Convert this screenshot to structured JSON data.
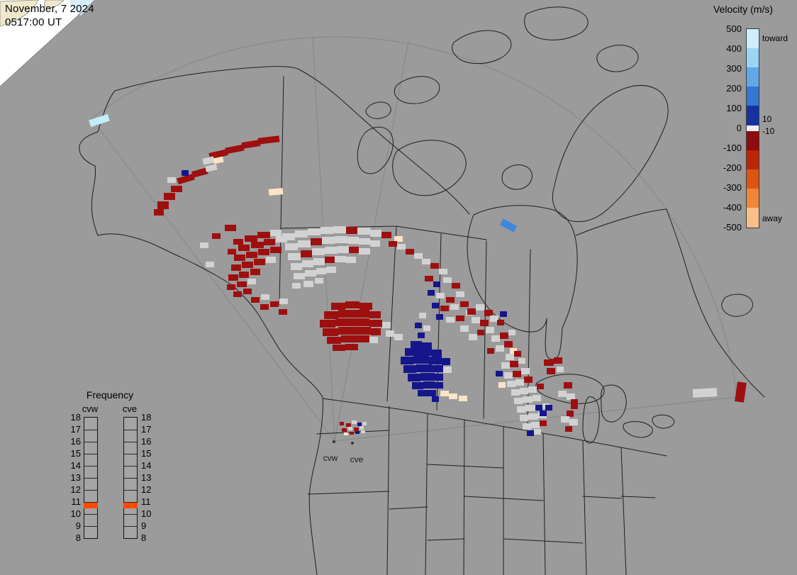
{
  "timestamp": {
    "date": "November, 7 2024",
    "time": "0517:00 UT"
  },
  "velocity_legend": {
    "title": "Velocity (m/s)",
    "toward_label": "toward",
    "away_label": "away",
    "inner_ticks": [
      "10",
      "-10"
    ],
    "ticks": [
      "500",
      "400",
      "300",
      "200",
      "100",
      "0",
      "-100",
      "-200",
      "-300",
      "-400",
      "-500"
    ],
    "segments": [
      {
        "color": "#cdeffc",
        "h": 27
      },
      {
        "color": "#9cd4f3",
        "h": 27
      },
      {
        "color": "#62a8e6",
        "h": 27
      },
      {
        "color": "#3377d2",
        "h": 27
      },
      {
        "color": "#16329f",
        "h": 28
      },
      {
        "color": "#efefef",
        "h": 8
      },
      {
        "color": "#8e0c0c",
        "h": 27
      },
      {
        "color": "#bb2606",
        "h": 27
      },
      {
        "color": "#dd5513",
        "h": 27
      },
      {
        "color": "#ef8638",
        "h": 27
      },
      {
        "color": "#f8bf8a",
        "h": 28
      }
    ]
  },
  "frequency_legend": {
    "title": "Frequency",
    "columns": [
      "cvw",
      "cve"
    ],
    "ticks": [
      "18",
      "17",
      "16",
      "15",
      "14",
      "13",
      "12",
      "11",
      "10",
      "9",
      "8"
    ],
    "highlight": {
      "at_tick": "11",
      "color": "#ff4a00"
    }
  },
  "map": {
    "background_color": "#9b9b9b",
    "radar_sites": [
      {
        "label": "cvw"
      },
      {
        "label": "cve"
      }
    ]
  },
  "palette": {
    "R": "#9e0f0f",
    "G": "#d2d2d2",
    "B": "#15158c",
    "P": "#fbe3c4",
    "C": "#c3ecfb",
    "L": "#3f86dd"
  },
  "cells": [
    [
      126,
      165,
      28,
      10,
      "C",
      -18
    ],
    [
      295,
      213,
      26,
      9,
      "R",
      -13
    ],
    [
      318,
      206,
      26,
      9,
      "R",
      -11
    ],
    [
      341,
      199,
      26,
      9,
      "R",
      -9
    ],
    [
      364,
      193,
      30,
      9,
      "R",
      -7
    ],
    [
      250,
      248,
      24,
      9,
      "R",
      -17
    ],
    [
      271,
      239,
      22,
      9,
      "R",
      -15
    ],
    [
      286,
      222,
      16,
      9,
      "G",
      -13
    ],
    [
      301,
      222,
      14,
      8,
      "P",
      -12
    ],
    [
      290,
      233,
      16,
      8,
      "G",
      -12
    ],
    [
      256,
      240,
      10,
      8,
      "B",
      0
    ],
    [
      222,
      284,
      16,
      11,
      "R",
      0
    ],
    [
      231,
      272,
      16,
      10,
      "R",
      0
    ],
    [
      241,
      262,
      16,
      9,
      "R",
      0
    ],
    [
      217,
      295,
      14,
      9,
      "R",
      0
    ],
    [
      236,
      250,
      12,
      8,
      "G",
      0
    ],
    [
      379,
      266,
      20,
      9,
      "P",
      -5
    ],
    [
      317,
      317,
      16,
      9,
      "R",
      0
    ],
    [
      299,
      329,
      12,
      8,
      "R",
      0
    ],
    [
      282,
      342,
      12,
      8,
      "G",
      0
    ],
    [
      329,
      337,
      14,
      8,
      "R",
      0
    ],
    [
      290,
      369,
      12,
      8,
      "G",
      0
    ],
    [
      321,
      351,
      12,
      8,
      "R",
      0
    ],
    [
      345,
      332,
      18,
      9,
      "R",
      0
    ],
    [
      363,
      327,
      18,
      9,
      "R",
      0
    ],
    [
      381,
      324,
      16,
      9,
      "G",
      0
    ],
    [
      336,
      345,
      16,
      9,
      "R",
      0
    ],
    [
      354,
      341,
      18,
      9,
      "R",
      0
    ],
    [
      372,
      337,
      16,
      9,
      "R",
      0
    ],
    [
      389,
      333,
      16,
      9,
      "G",
      0
    ],
    [
      330,
      359,
      16,
      9,
      "R",
      0
    ],
    [
      347,
      355,
      16,
      9,
      "R",
      0
    ],
    [
      364,
      351,
      16,
      9,
      "R",
      0
    ],
    [
      381,
      348,
      16,
      9,
      "R",
      0
    ],
    [
      326,
      373,
      14,
      9,
      "R",
      0
    ],
    [
      341,
      369,
      16,
      9,
      "R",
      0
    ],
    [
      358,
      365,
      16,
      9,
      "R",
      0
    ],
    [
      375,
      362,
      14,
      9,
      "G",
      0
    ],
    [
      322,
      387,
      14,
      9,
      "R",
      0
    ],
    [
      337,
      383,
      14,
      9,
      "R",
      0
    ],
    [
      353,
      379,
      14,
      9,
      "R",
      0
    ],
    [
      320,
      401,
      12,
      8,
      "R",
      0
    ],
    [
      334,
      397,
      14,
      8,
      "R",
      0
    ],
    [
      349,
      393,
      12,
      8,
      "G",
      0
    ],
    [
      329,
      411,
      12,
      8,
      "R",
      0
    ],
    [
      343,
      407,
      12,
      8,
      "R",
      0
    ],
    [
      354,
      419,
      12,
      8,
      "R",
      0
    ],
    [
      368,
      415,
      12,
      8,
      "G",
      0
    ],
    [
      367,
      429,
      12,
      8,
      "R",
      0
    ],
    [
      381,
      425,
      12,
      8,
      "R",
      0
    ],
    [
      394,
      421,
      12,
      8,
      "G",
      0
    ],
    [
      393,
      436,
      12,
      8,
      "R",
      0
    ],
    [
      398,
      329,
      18,
      10,
      "G",
      0
    ],
    [
      416,
      325,
      18,
      10,
      "G",
      0
    ],
    [
      434,
      322,
      18,
      10,
      "G",
      0
    ],
    [
      452,
      320,
      18,
      10,
      "G",
      0
    ],
    [
      470,
      319,
      18,
      10,
      "G",
      0
    ],
    [
      488,
      320,
      16,
      10,
      "R",
      0
    ],
    [
      504,
      321,
      18,
      10,
      "G",
      0
    ],
    [
      522,
      324,
      16,
      10,
      "G",
      0
    ],
    [
      538,
      327,
      14,
      9,
      "R",
      0
    ],
    [
      402,
      343,
      18,
      10,
      "G",
      0
    ],
    [
      420,
      339,
      18,
      10,
      "G",
      0
    ],
    [
      438,
      336,
      16,
      10,
      "R",
      0
    ],
    [
      454,
      334,
      18,
      10,
      "G",
      0
    ],
    [
      472,
      333,
      18,
      10,
      "G",
      0
    ],
    [
      490,
      334,
      16,
      10,
      "G",
      0
    ],
    [
      506,
      336,
      16,
      9,
      "G",
      0
    ],
    [
      522,
      339,
      14,
      9,
      "G",
      0
    ],
    [
      406,
      357,
      18,
      10,
      "G",
      0
    ],
    [
      424,
      353,
      16,
      10,
      "R",
      0
    ],
    [
      440,
      350,
      18,
      10,
      "G",
      0
    ],
    [
      458,
      348,
      18,
      10,
      "G",
      0
    ],
    [
      476,
      347,
      16,
      10,
      "G",
      0
    ],
    [
      492,
      348,
      14,
      9,
      "R",
      0
    ],
    [
      506,
      350,
      16,
      9,
      "G",
      0
    ],
    [
      410,
      371,
      16,
      10,
      "G",
      0
    ],
    [
      426,
      367,
      16,
      10,
      "G",
      0
    ],
    [
      442,
      364,
      16,
      10,
      "G",
      0
    ],
    [
      458,
      362,
      14,
      9,
      "R",
      0
    ],
    [
      472,
      361,
      16,
      9,
      "G",
      0
    ],
    [
      488,
      362,
      14,
      9,
      "G",
      0
    ],
    [
      414,
      385,
      16,
      9,
      "G",
      0
    ],
    [
      430,
      381,
      16,
      9,
      "G",
      0
    ],
    [
      446,
      378,
      14,
      9,
      "G",
      0
    ],
    [
      460,
      376,
      14,
      9,
      "G",
      0
    ],
    [
      412,
      399,
      12,
      8,
      "G",
      0
    ],
    [
      428,
      396,
      14,
      9,
      "G",
      0
    ],
    [
      444,
      392,
      12,
      8,
      "G",
      0
    ],
    [
      556,
      333,
      12,
      8,
      "P",
      0
    ],
    [
      548,
      340,
      12,
      8,
      "R",
      0
    ],
    [
      560,
      344,
      12,
      8,
      "G",
      0
    ],
    [
      572,
      351,
      12,
      8,
      "R",
      0
    ],
    [
      584,
      357,
      12,
      8,
      "G",
      0
    ],
    [
      595,
      365,
      12,
      8,
      "G",
      0
    ],
    [
      607,
      371,
      12,
      8,
      "R",
      0
    ],
    [
      619,
      379,
      12,
      8,
      "G",
      0
    ],
    [
      599,
      389,
      12,
      8,
      "R",
      0
    ],
    [
      611,
      397,
      10,
      8,
      "B",
      0
    ],
    [
      625,
      391,
      12,
      8,
      "G",
      0
    ],
    [
      637,
      399,
      12,
      8,
      "R",
      0
    ],
    [
      603,
      409,
      10,
      8,
      "B",
      0
    ],
    [
      615,
      413,
      12,
      8,
      "G",
      0
    ],
    [
      629,
      419,
      12,
      8,
      "R",
      0
    ],
    [
      643,
      411,
      12,
      8,
      "G",
      0
    ],
    [
      609,
      427,
      10,
      8,
      "B",
      0
    ],
    [
      621,
      431,
      12,
      8,
      "R",
      0
    ],
    [
      635,
      429,
      12,
      8,
      "G",
      0
    ],
    [
      649,
      425,
      12,
      8,
      "R",
      0
    ],
    [
      657,
      437,
      12,
      8,
      "G",
      0
    ],
    [
      643,
      445,
      12,
      8,
      "R",
      0
    ],
    [
      629,
      447,
      12,
      8,
      "G",
      0
    ],
    [
      615,
      443,
      10,
      8,
      "B",
      0
    ],
    [
      591,
      441,
      10,
      8,
      "G",
      0
    ],
    [
      585,
      455,
      10,
      8,
      "B",
      0
    ],
    [
      597,
      459,
      10,
      8,
      "G",
      0
    ],
    [
      589,
      469,
      10,
      8,
      "B",
      0
    ],
    [
      649,
      459,
      12,
      9,
      "G",
      0
    ],
    [
      661,
      471,
      12,
      9,
      "G",
      0
    ],
    [
      467,
      427,
      20,
      10,
      "R",
      0
    ],
    [
      487,
      425,
      20,
      10,
      "R",
      0
    ],
    [
      507,
      427,
      18,
      10,
      "R",
      0
    ],
    [
      457,
      439,
      20,
      11,
      "R",
      0
    ],
    [
      477,
      437,
      22,
      11,
      "R",
      0
    ],
    [
      499,
      437,
      22,
      11,
      "R",
      0
    ],
    [
      521,
      439,
      16,
      10,
      "R",
      0
    ],
    [
      451,
      451,
      22,
      11,
      "R",
      0
    ],
    [
      473,
      449,
      24,
      11,
      "R",
      0
    ],
    [
      497,
      449,
      24,
      11,
      "R",
      0
    ],
    [
      521,
      451,
      18,
      10,
      "R",
      0
    ],
    [
      539,
      454,
      12,
      9,
      "G",
      0
    ],
    [
      455,
      463,
      22,
      11,
      "R",
      0
    ],
    [
      477,
      461,
      24,
      11,
      "R",
      0
    ],
    [
      501,
      461,
      22,
      11,
      "R",
      0
    ],
    [
      523,
      463,
      14,
      10,
      "R",
      0
    ],
    [
      461,
      475,
      20,
      10,
      "R",
      0
    ],
    [
      481,
      473,
      22,
      10,
      "R",
      0
    ],
    [
      503,
      473,
      18,
      10,
      "R",
      0
    ],
    [
      521,
      475,
      12,
      9,
      "G",
      0
    ],
    [
      469,
      486,
      18,
      9,
      "R",
      0
    ],
    [
      487,
      485,
      18,
      9,
      "R",
      0
    ],
    [
      544,
      466,
      12,
      9,
      "G",
      0
    ],
    [
      556,
      471,
      12,
      9,
      "G",
      0
    ],
    [
      579,
      481,
      16,
      10,
      "B",
      0
    ],
    [
      595,
      483,
      14,
      10,
      "B",
      0
    ],
    [
      571,
      491,
      18,
      11,
      "B",
      0
    ],
    [
      589,
      491,
      20,
      11,
      "B",
      0
    ],
    [
      609,
      493,
      14,
      10,
      "B",
      0
    ],
    [
      565,
      503,
      18,
      11,
      "B",
      0
    ],
    [
      583,
      502,
      22,
      11,
      "B",
      0
    ],
    [
      605,
      503,
      18,
      11,
      "B",
      0
    ],
    [
      623,
      505,
      12,
      10,
      "B",
      0
    ],
    [
      569,
      515,
      18,
      11,
      "B",
      0
    ],
    [
      587,
      514,
      22,
      11,
      "B",
      0
    ],
    [
      609,
      515,
      16,
      10,
      "B",
      0
    ],
    [
      625,
      517,
      12,
      9,
      "G",
      0
    ],
    [
      575,
      527,
      18,
      11,
      "B",
      0
    ],
    [
      593,
      526,
      20,
      11,
      "B",
      0
    ],
    [
      613,
      527,
      12,
      10,
      "B",
      0
    ],
    [
      581,
      539,
      16,
      10,
      "B",
      0
    ],
    [
      597,
      538,
      16,
      10,
      "B",
      0
    ],
    [
      613,
      539,
      12,
      9,
      "B",
      0
    ],
    [
      589,
      550,
      14,
      9,
      "B",
      0
    ],
    [
      603,
      550,
      12,
      9,
      "B",
      0
    ],
    [
      609,
      559,
      10,
      8,
      "B",
      0
    ],
    [
      621,
      551,
      12,
      8,
      "P",
      0
    ],
    [
      633,
      555,
      12,
      8,
      "P",
      0
    ],
    [
      647,
      558,
      12,
      8,
      "P",
      0
    ],
    [
      659,
      435,
      12,
      9,
      "R",
      0
    ],
    [
      671,
      429,
      12,
      9,
      "G",
      0
    ],
    [
      683,
      437,
      12,
      9,
      "R",
      0
    ],
    [
      665,
      447,
      12,
      9,
      "G",
      0
    ],
    [
      677,
      451,
      12,
      9,
      "R",
      0
    ],
    [
      691,
      445,
      12,
      9,
      "G",
      0
    ],
    [
      701,
      451,
      10,
      8,
      "R",
      0
    ],
    [
      685,
      461,
      12,
      9,
      "G",
      0
    ],
    [
      673,
      465,
      10,
      8,
      "R",
      0
    ],
    [
      705,
      439,
      10,
      8,
      "B",
      0
    ],
    [
      693,
      473,
      12,
      9,
      "G",
      0
    ],
    [
      705,
      469,
      12,
      9,
      "R",
      0
    ],
    [
      717,
      465,
      10,
      8,
      "G",
      0
    ],
    [
      711,
      481,
      12,
      9,
      "R",
      0
    ],
    [
      699,
      487,
      12,
      9,
      "G",
      0
    ],
    [
      687,
      491,
      10,
      8,
      "R",
      0
    ],
    [
      719,
      491,
      10,
      8,
      "P",
      0
    ],
    [
      713,
      499,
      12,
      9,
      "G",
      0
    ],
    [
      725,
      495,
      10,
      8,
      "R",
      0
    ],
    [
      707,
      511,
      12,
      9,
      "G",
      0
    ],
    [
      719,
      509,
      12,
      9,
      "R",
      0
    ],
    [
      731,
      505,
      10,
      8,
      "G",
      0
    ],
    [
      699,
      523,
      10,
      8,
      "B",
      0
    ],
    [
      711,
      525,
      12,
      9,
      "G",
      0
    ],
    [
      723,
      523,
      12,
      9,
      "R",
      0
    ],
    [
      735,
      519,
      12,
      9,
      "G",
      0
    ],
    [
      715,
      537,
      12,
      9,
      "G",
      0
    ],
    [
      727,
      535,
      12,
      9,
      "G",
      0
    ],
    [
      739,
      531,
      12,
      9,
      "R",
      0
    ],
    [
      703,
      539,
      10,
      8,
      "P",
      0
    ],
    [
      721,
      549,
      12,
      9,
      "G",
      0
    ],
    [
      733,
      547,
      12,
      9,
      "G",
      0
    ],
    [
      745,
      545,
      12,
      9,
      "G",
      0
    ],
    [
      757,
      541,
      10,
      8,
      "R",
      0
    ],
    [
      725,
      561,
      12,
      9,
      "G",
      0
    ],
    [
      737,
      559,
      14,
      9,
      "G",
      0
    ],
    [
      751,
      557,
      12,
      9,
      "G",
      0
    ],
    [
      729,
      573,
      12,
      9,
      "G",
      0
    ],
    [
      741,
      571,
      14,
      9,
      "G",
      0
    ],
    [
      755,
      571,
      10,
      8,
      "B",
      0
    ],
    [
      765,
      569,
      10,
      8,
      "G",
      0
    ],
    [
      733,
      585,
      12,
      9,
      "G",
      0
    ],
    [
      745,
      583,
      14,
      9,
      "G",
      0
    ],
    [
      759,
      581,
      12,
      9,
      "G",
      0
    ],
    [
      737,
      597,
      12,
      9,
      "G",
      0
    ],
    [
      749,
      595,
      12,
      9,
      "G",
      0
    ],
    [
      761,
      593,
      10,
      8,
      "R",
      0
    ],
    [
      743,
      607,
      10,
      8,
      "B",
      0
    ],
    [
      753,
      605,
      10,
      8,
      "G",
      0
    ],
    [
      767,
      507,
      14,
      9,
      "R",
      0
    ],
    [
      781,
      504,
      12,
      9,
      "R",
      0
    ],
    [
      771,
      519,
      12,
      9,
      "R",
      0
    ],
    [
      785,
      517,
      10,
      8,
      "G",
      0
    ],
    [
      795,
      539,
      12,
      9,
      "R",
      0
    ],
    [
      787,
      551,
      12,
      9,
      "G",
      0
    ],
    [
      799,
      555,
      12,
      9,
      "G",
      0
    ],
    [
      805,
      563,
      10,
      14,
      "R",
      0
    ],
    [
      799,
      579,
      10,
      9,
      "R",
      0
    ],
    [
      769,
      571,
      10,
      8,
      "B",
      0
    ],
    [
      761,
      579,
      10,
      8,
      "B",
      0
    ],
    [
      791,
      587,
      12,
      9,
      "G",
      0
    ],
    [
      803,
      591,
      12,
      9,
      "G",
      0
    ],
    [
      797,
      601,
      10,
      8,
      "R",
      0
    ],
    [
      706,
      313,
      22,
      10,
      "L",
      28
    ],
    [
      977,
      548,
      34,
      12,
      "G",
      -3
    ],
    [
      1038,
      539,
      13,
      28,
      "R",
      8
    ],
    [
      488,
      597,
      7,
      5,
      "R",
      0
    ],
    [
      496,
      593,
      7,
      5,
      "G",
      0
    ],
    [
      504,
      596,
      6,
      5,
      "B",
      0
    ],
    [
      482,
      604,
      7,
      5,
      "R",
      0
    ],
    [
      491,
      602,
      6,
      5,
      "G",
      0
    ],
    [
      499,
      603,
      7,
      5,
      "R",
      0
    ],
    [
      507,
      601,
      6,
      5,
      "G",
      0
    ],
    [
      485,
      610,
      6,
      4,
      "P",
      0
    ],
    [
      493,
      609,
      6,
      4,
      "R",
      0
    ],
    [
      501,
      608,
      6,
      4,
      "B",
      0
    ],
    [
      509,
      607,
      6,
      4,
      "G",
      0
    ],
    [
      479,
      595,
      6,
      5,
      "R",
      0
    ],
    [
      511,
      595,
      6,
      5,
      "G",
      0
    ]
  ]
}
